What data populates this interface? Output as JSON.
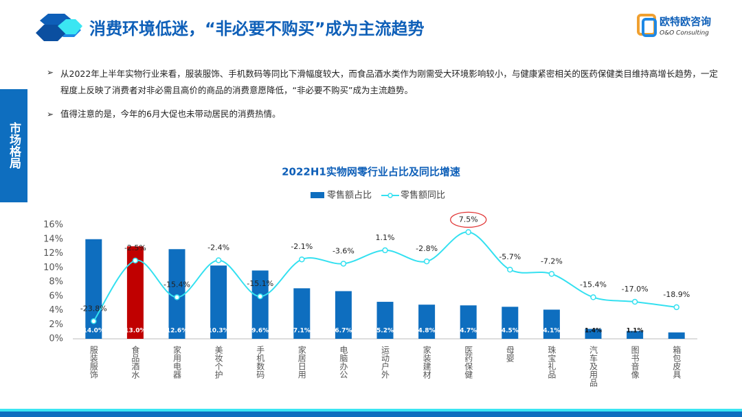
{
  "header": {
    "title": "消费环境低迷，“非必要不购买”成为主流趋势",
    "logo": "欧特欧咨询",
    "logo_sub": "O&O Consulting",
    "side_tab": "市场格局"
  },
  "bullets": [
    "从2022年上半年实物行业来看，服装服饰、手机数码等同比下滑幅度较大，而食品酒水类作为刚需受大环境影响较小，与健康紧密相关的医药保健类目维持高增长趋势，一定程度上反映了消费者对非必需且高价的商品的消费意愿降低，“非必要不购买”成为主流趋势。",
    "值得注意的是，今年的6月大促也未带动居民的消费热情。"
  ],
  "chart_data": {
    "type": "bar",
    "title": "2022H1实物网零行业占比及同比增速",
    "categories": [
      "服装服饰",
      "食品酒水",
      "家用电器",
      "美妆个护",
      "手机数码",
      "家居日用",
      "电脑办公",
      "运动户外",
      "家装建材",
      "医药保健",
      "母婴",
      "珠宝礼品",
      "汽车及用品",
      "图书音像",
      "箱包皮具"
    ],
    "series": [
      {
        "name": "零售额占比",
        "type": "bar",
        "color": "#0e6ebf",
        "bar_colors": [
          "#0e6ebf",
          "#c00000",
          "#0e6ebf",
          "#0e6ebf",
          "#0e6ebf",
          "#0e6ebf",
          "#0e6ebf",
          "#0e6ebf",
          "#0e6ebf",
          "#0e6ebf",
          "#0e6ebf",
          "#0e6ebf",
          "#0e6ebf",
          "#0e6ebf",
          "#0e6ebf"
        ],
        "values": [
          14.0,
          13.0,
          12.6,
          10.3,
          9.6,
          7.1,
          6.7,
          5.2,
          4.8,
          4.7,
          4.5,
          4.1,
          1.4,
          1.1,
          0.9
        ],
        "value_labels": [
          "14.0%",
          "13.0%",
          "12.6%",
          "10.3%",
          "9.6%",
          "7.1%",
          "6.7%",
          "5.2%",
          "4.8%",
          "4.7%",
          "4.5%",
          "4.1%",
          "1.4%",
          "1.1%",
          null
        ]
      },
      {
        "name": "零售额同比",
        "type": "line",
        "axis": "y2",
        "color": "#33e0f0",
        "values": [
          -23.8,
          -2.5,
          -15.4,
          -2.4,
          -15.1,
          -2.1,
          -3.6,
          1.1,
          -2.8,
          7.5,
          -5.7,
          -7.2,
          -15.4,
          -17.0,
          -18.9
        ],
        "value_labels": [
          "-23.8%",
          "-2.5%",
          "-15.4%",
          "-2.4%",
          "-15.1%",
          "-2.1%",
          "-3.6%",
          "1.1%",
          "-2.8%",
          "7.5%",
          "-5.7%",
          "-7.2%",
          "-15.4%",
          "-17.0%",
          "-18.9%"
        ]
      }
    ],
    "ylim": [
      0,
      16
    ],
    "yticks": [
      {
        "value": 0,
        "label": "0%"
      },
      {
        "value": 2,
        "label": "2%"
      },
      {
        "value": 4,
        "label": "4%"
      },
      {
        "value": 6,
        "label": "6%"
      },
      {
        "value": 8,
        "label": "8%"
      },
      {
        "value": 10,
        "label": "10%"
      },
      {
        "value": 12,
        "label": "12%"
      },
      {
        "value": 14,
        "label": "14%"
      },
      {
        "value": 16,
        "label": "16%"
      }
    ],
    "y2lim": [
      -30,
      10
    ],
    "legend": "top"
  }
}
